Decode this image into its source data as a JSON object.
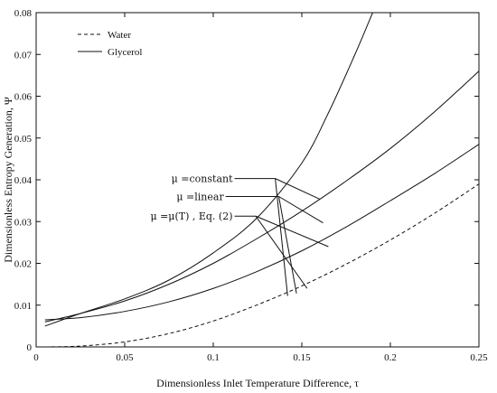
{
  "chart_data": {
    "type": "line",
    "xlabel": "Dimensionless Inlet Temperature Difference, τ",
    "ylabel": "Dimensionless Entropy Generation, Ψ",
    "xlim": [
      0,
      0.25
    ],
    "ylim": [
      0,
      0.08
    ],
    "x_ticks": [
      0,
      0.05,
      0.1,
      0.15,
      0.2,
      0.25
    ],
    "x_tick_labels": [
      "0",
      "0.05",
      "0.1",
      "0.15",
      "0.2",
      "0.25"
    ],
    "y_ticks": [
      0,
      0.01,
      0.02,
      0.03,
      0.04,
      0.05,
      0.06,
      0.07,
      0.08
    ],
    "y_tick_labels": [
      "0",
      "0.01",
      "0.02",
      "0.03",
      "0.04",
      "0.05",
      "0.06",
      "0.07",
      "0.08"
    ],
    "grid": false,
    "legend_position": "top-left",
    "legend": [
      {
        "label": "Water",
        "style": "dashed"
      },
      {
        "label": "Glycerol",
        "style": "solid"
      }
    ],
    "series": [
      {
        "name": "Water",
        "style": "dashed",
        "x": [
          0.005,
          0.025,
          0.05,
          0.075,
          0.1,
          0.125,
          0.15,
          0.175,
          0.2,
          0.225,
          0.25
        ],
        "y": [
          0.0,
          0.0002,
          0.0012,
          0.0032,
          0.0062,
          0.0101,
          0.0146,
          0.0198,
          0.0256,
          0.032,
          0.039
        ]
      },
      {
        "name": "",
        "style": "solid",
        "x": [
          0.005,
          0.025,
          0.05,
          0.075,
          0.1,
          0.125,
          0.15,
          0.175,
          0.2,
          0.225,
          0.25
        ],
        "y": [
          0.0065,
          0.007,
          0.0085,
          0.0108,
          0.014,
          0.0181,
          0.023,
          0.0287,
          0.035,
          0.0415,
          0.0485
        ]
      },
      {
        "name": "",
        "style": "solid",
        "x": [
          0.005,
          0.025,
          0.05,
          0.075,
          0.1,
          0.125,
          0.15,
          0.175,
          0.2,
          0.225,
          0.25
        ],
        "y": [
          0.006,
          0.008,
          0.011,
          0.015,
          0.02,
          0.026,
          0.0325,
          0.0397,
          0.0475,
          0.0563,
          0.066
        ]
      },
      {
        "name": "",
        "style": "solid",
        "x": [
          0.005,
          0.025,
          0.05,
          0.075,
          0.1,
          0.125,
          0.15,
          0.165,
          0.18,
          0.19
        ],
        "y": [
          0.005,
          0.008,
          0.0115,
          0.016,
          0.0225,
          0.031,
          0.044,
          0.056,
          0.07,
          0.08
        ]
      }
    ],
    "annotations": [
      {
        "label": "μ =constant",
        "shelf": [
          [
            0.112,
            0.0403
          ],
          [
            0.135,
            0.0403
          ]
        ],
        "leaders": [
          [
            [
              0.135,
              0.0403
            ],
            [
              0.142,
              0.0122
            ]
          ],
          [
            [
              0.135,
              0.0403
            ],
            [
              0.16,
              0.0354
            ]
          ]
        ]
      },
      {
        "label": "μ =linear",
        "shelf": [
          [
            0.107,
            0.036
          ],
          [
            0.137,
            0.036
          ]
        ],
        "leaders": [
          [
            [
              0.137,
              0.036
            ],
            [
              0.147,
              0.0128
            ]
          ],
          [
            [
              0.137,
              0.036
            ],
            [
              0.162,
              0.0297
            ]
          ]
        ]
      },
      {
        "label": "μ =μ(T) , Eq. (2)",
        "shelf": [
          [
            0.112,
            0.0313
          ],
          [
            0.124,
            0.0313
          ]
        ],
        "leaders": [
          [
            [
              0.124,
              0.0313
            ],
            [
              0.153,
              0.014
            ]
          ],
          [
            [
              0.124,
              0.0313
            ],
            [
              0.165,
              0.024
            ]
          ]
        ]
      }
    ]
  }
}
